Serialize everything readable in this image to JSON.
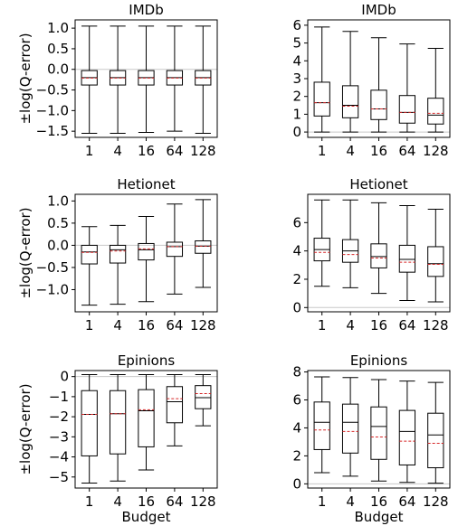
{
  "chart_data": [
    {
      "type": "box",
      "title": "IMDb",
      "xlabel": "",
      "ylabel": "±log(Q-error)",
      "ylim": [
        -1.65,
        1.2
      ],
      "yticks": [
        -1.5,
        -1.0,
        -0.5,
        0.0,
        0.5,
        1.0
      ],
      "ytick_labels": [
        "−1.5",
        "−1.0",
        "−0.5",
        "0.0",
        "0.5",
        "1.0"
      ],
      "categories": [
        "1",
        "4",
        "16",
        "64",
        "128"
      ],
      "reference_line": 0,
      "boxes": [
        {
          "whisker_low": -1.55,
          "q1": -0.38,
          "median": -0.2,
          "mean": -0.21,
          "q3": -0.03,
          "whisker_high": 1.05
        },
        {
          "whisker_low": -1.55,
          "q1": -0.38,
          "median": -0.2,
          "mean": -0.21,
          "q3": -0.03,
          "whisker_high": 1.05
        },
        {
          "whisker_low": -1.53,
          "q1": -0.38,
          "median": -0.2,
          "mean": -0.21,
          "q3": -0.03,
          "whisker_high": 1.05
        },
        {
          "whisker_low": -1.5,
          "q1": -0.38,
          "median": -0.2,
          "mean": -0.21,
          "q3": -0.03,
          "whisker_high": 1.05
        },
        {
          "whisker_low": -1.55,
          "q1": -0.38,
          "median": -0.2,
          "mean": -0.21,
          "q3": -0.03,
          "whisker_high": 1.05
        }
      ]
    },
    {
      "type": "box",
      "title": "IMDb",
      "xlabel": "",
      "ylabel": "",
      "ylim": [
        -0.3,
        6.3
      ],
      "yticks": [
        0,
        1,
        2,
        3,
        4,
        5,
        6
      ],
      "ytick_labels": [
        "0",
        "1",
        "2",
        "3",
        "4",
        "5",
        "6"
      ],
      "categories": [
        "1",
        "4",
        "16",
        "64",
        "128"
      ],
      "reference_line": 0,
      "boxes": [
        {
          "whisker_low": 0.0,
          "q1": 0.9,
          "median": 1.65,
          "mean": 1.65,
          "q3": 2.8,
          "whisker_high": 5.9
        },
        {
          "whisker_low": 0.0,
          "q1": 0.8,
          "median": 1.5,
          "mean": 1.45,
          "q3": 2.6,
          "whisker_high": 5.65
        },
        {
          "whisker_low": 0.0,
          "q1": 0.7,
          "median": 1.3,
          "mean": 1.3,
          "q3": 2.35,
          "whisker_high": 5.3
        },
        {
          "whisker_low": 0.0,
          "q1": 0.5,
          "median": 1.1,
          "mean": 1.1,
          "q3": 2.05,
          "whisker_high": 4.95
        },
        {
          "whisker_low": 0.0,
          "q1": 0.45,
          "median": 0.95,
          "mean": 1.05,
          "q3": 1.9,
          "whisker_high": 4.7
        }
      ]
    },
    {
      "type": "box",
      "title": "Hetionet",
      "xlabel": "",
      "ylabel": "±log(Q-error)",
      "ylim": [
        -1.5,
        1.15
      ],
      "yticks": [
        -1.0,
        -0.5,
        0.0,
        0.5,
        1.0
      ],
      "ytick_labels": [
        "−1.0",
        "−0.5",
        "0.0",
        "0.5",
        "1.0"
      ],
      "categories": [
        "1",
        "4",
        "16",
        "64",
        "128"
      ],
      "reference_line": 0,
      "boxes": [
        {
          "whisker_low": -1.35,
          "q1": -0.42,
          "median": -0.15,
          "mean": -0.16,
          "q3": 0.0,
          "whisker_high": 0.42
        },
        {
          "whisker_low": -1.33,
          "q1": -0.4,
          "median": -0.1,
          "mean": -0.13,
          "q3": 0.0,
          "whisker_high": 0.45
        },
        {
          "whisker_low": -1.27,
          "q1": -0.33,
          "median": -0.1,
          "mean": -0.08,
          "q3": 0.04,
          "whisker_high": 0.65
        },
        {
          "whisker_low": -1.1,
          "q1": -0.25,
          "median": -0.03,
          "mean": -0.03,
          "q3": 0.07,
          "whisker_high": 0.93
        },
        {
          "whisker_low": -0.95,
          "q1": -0.18,
          "median": -0.02,
          "mean": -0.02,
          "q3": 0.1,
          "whisker_high": 1.03
        }
      ]
    },
    {
      "type": "box",
      "title": "Hetionet",
      "xlabel": "",
      "ylabel": "",
      "ylim": [
        -0.3,
        8.0
      ],
      "yticks": [
        0,
        2,
        4,
        6
      ],
      "ytick_labels": [
        "0",
        "2",
        "4",
        "6"
      ],
      "categories": [
        "1",
        "4",
        "16",
        "64",
        "128"
      ],
      "reference_line": 0,
      "boxes": [
        {
          "whisker_low": 1.5,
          "q1": 3.3,
          "median": 4.1,
          "mean": 3.9,
          "q3": 4.9,
          "whisker_high": 7.6
        },
        {
          "whisker_low": 1.4,
          "q1": 3.2,
          "median": 4.0,
          "mean": 3.75,
          "q3": 4.8,
          "whisker_high": 7.6
        },
        {
          "whisker_low": 1.0,
          "q1": 2.8,
          "median": 3.6,
          "mean": 3.5,
          "q3": 4.5,
          "whisker_high": 7.4
        },
        {
          "whisker_low": 0.5,
          "q1": 2.5,
          "median": 3.4,
          "mean": 3.2,
          "q3": 4.4,
          "whisker_high": 7.2
        },
        {
          "whisker_low": 0.4,
          "q1": 2.2,
          "median": 3.1,
          "mean": 3.05,
          "q3": 4.3,
          "whisker_high": 6.95
        }
      ]
    },
    {
      "type": "box",
      "title": "Epinions",
      "xlabel": "Budget",
      "ylabel": "±log(Q-error)",
      "ylim": [
        -5.55,
        0.3
      ],
      "yticks": [
        -5,
        -4,
        -3,
        -2,
        -1,
        0
      ],
      "ytick_labels": [
        "−5",
        "−4",
        "−3",
        "−2",
        "−1",
        "0"
      ],
      "categories": [
        "1",
        "4",
        "16",
        "64",
        "128"
      ],
      "reference_line": 0,
      "boxes": [
        {
          "whisker_low": -5.3,
          "q1": -3.95,
          "median": -1.88,
          "mean": -1.88,
          "q3": -0.7,
          "whisker_high": 0.1
        },
        {
          "whisker_low": -5.2,
          "q1": -3.85,
          "median": -1.85,
          "mean": -1.85,
          "q3": -0.7,
          "whisker_high": 0.1
        },
        {
          "whisker_low": -4.65,
          "q1": -3.5,
          "median": -1.7,
          "mean": -1.65,
          "q3": -0.65,
          "whisker_high": 0.1
        },
        {
          "whisker_low": -3.45,
          "q1": -2.3,
          "median": -1.25,
          "mean": -1.1,
          "q3": -0.5,
          "whisker_high": 0.1
        },
        {
          "whisker_low": -2.45,
          "q1": -1.6,
          "median": -1.05,
          "mean": -0.85,
          "q3": -0.45,
          "whisker_high": 0.1
        }
      ]
    },
    {
      "type": "box",
      "title": "Epinions",
      "xlabel": "Budget",
      "ylabel": "",
      "ylim": [
        -0.3,
        8.1
      ],
      "yticks": [
        0,
        2,
        4,
        6,
        8
      ],
      "ytick_labels": [
        "0",
        "2",
        "4",
        "6",
        "8"
      ],
      "categories": [
        "1",
        "4",
        "16",
        "64",
        "128"
      ],
      "reference_line": 0,
      "boxes": [
        {
          "whisker_low": 0.8,
          "q1": 2.45,
          "median": 4.4,
          "mean": 3.85,
          "q3": 5.85,
          "whisker_high": 7.65
        },
        {
          "whisker_low": 0.55,
          "q1": 2.2,
          "median": 4.4,
          "mean": 3.75,
          "q3": 5.7,
          "whisker_high": 7.6
        },
        {
          "whisker_low": 0.2,
          "q1": 1.75,
          "median": 4.1,
          "mean": 3.35,
          "q3": 5.5,
          "whisker_high": 7.45
        },
        {
          "whisker_low": 0.1,
          "q1": 1.35,
          "median": 3.75,
          "mean": 3.05,
          "q3": 5.25,
          "whisker_high": 7.35
        },
        {
          "whisker_low": 0.05,
          "q1": 1.15,
          "median": 3.5,
          "mean": 2.9,
          "q3": 5.05,
          "whisker_high": 7.25
        }
      ]
    }
  ]
}
